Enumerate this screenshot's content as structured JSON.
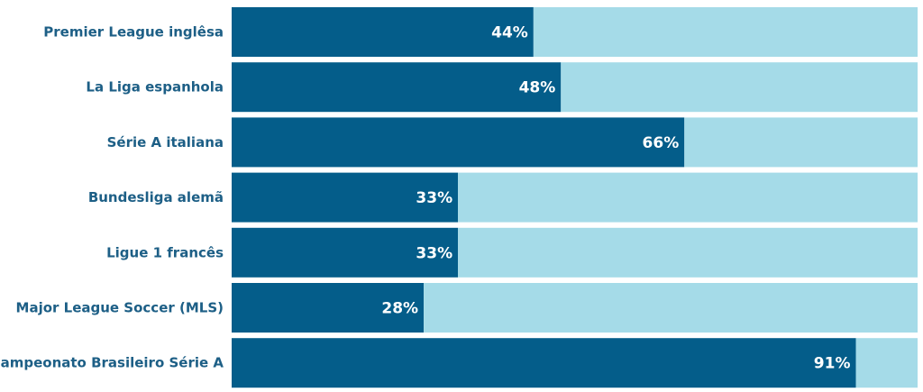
{
  "chart_data": {
    "type": "bar",
    "orientation": "horizontal",
    "stacked_to_100": true,
    "categories": [
      "Premier League inglêsa",
      "La Liga espanhola",
      "Série A italiana",
      "Bundesliga alemã",
      "Ligue 1 francês",
      "Major League Soccer (MLS)",
      "Campeonato Brasileiro Série A"
    ],
    "series": [
      {
        "values": [
          44,
          48,
          66,
          33,
          33,
          28,
          91
        ],
        "color": "#045d8a"
      },
      {
        "values": [
          56,
          52,
          34,
          67,
          67,
          72,
          9
        ],
        "color": "#a5dbe8"
      }
    ],
    "value_labels": [
      "44%",
      "48%",
      "66%",
      "33%",
      "33%",
      "28%",
      "91%"
    ],
    "xlim": [
      0,
      100
    ],
    "grid": false,
    "legend": "none"
  }
}
